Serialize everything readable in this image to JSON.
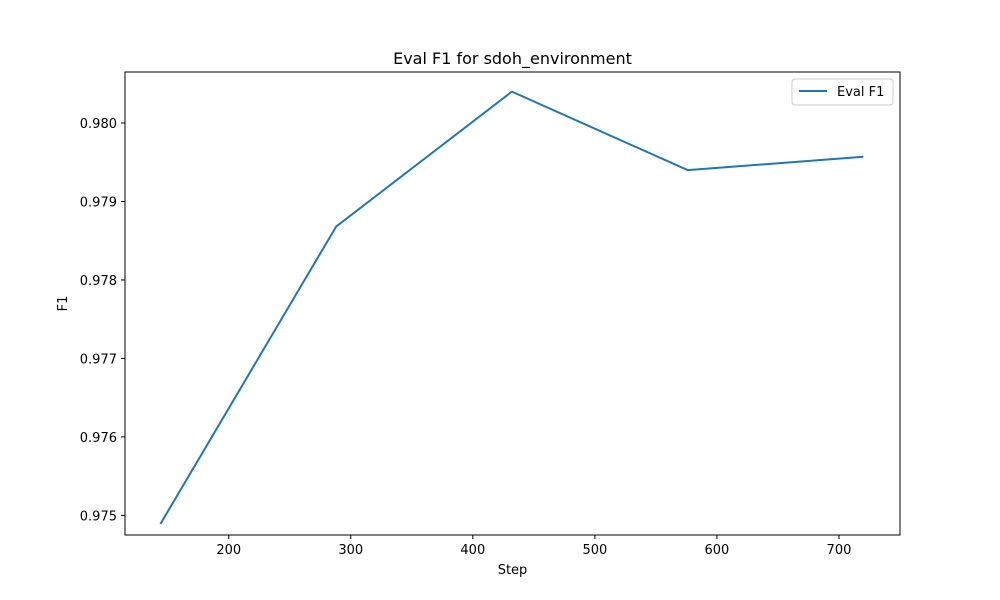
{
  "chart_data": {
    "type": "line",
    "title": "Eval F1 for sdoh_environment",
    "xlabel": "Step",
    "ylabel": "F1",
    "xlim": [
      115,
      750
    ],
    "ylim": [
      0.97475,
      0.98065
    ],
    "x_ticks": [
      200,
      300,
      400,
      500,
      600,
      700
    ],
    "y_ticks": [
      0.975,
      0.976,
      0.977,
      0.978,
      0.979,
      0.98
    ],
    "x_tick_labels": [
      "200",
      "300",
      "400",
      "500",
      "600",
      "700"
    ],
    "y_tick_labels": [
      "0.975",
      "0.976",
      "0.977",
      "0.978",
      "0.979",
      "0.980"
    ],
    "grid": false,
    "legend_position": "top-right",
    "series": [
      {
        "name": "Eval F1",
        "color": "#1f77b4",
        "x": [
          144,
          288,
          432,
          576,
          720
        ],
        "y": [
          0.97489,
          0.97868,
          0.9804,
          0.9794,
          0.97957
        ]
      }
    ]
  }
}
